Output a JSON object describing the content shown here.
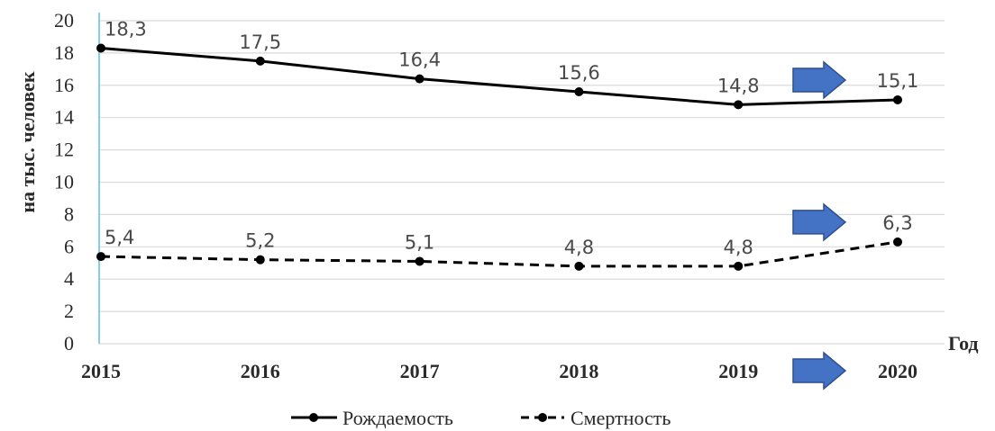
{
  "chart_data": {
    "type": "line",
    "title": "",
    "xlabel": "Год",
    "ylabel": "на тыс. человек",
    "categories": [
      "2015",
      "2016",
      "2017",
      "2018",
      "2019",
      "2020"
    ],
    "ylim": [
      0,
      20
    ],
    "yticks": [
      "0",
      "2",
      "4",
      "6",
      "8",
      "10",
      "12",
      "14",
      "16",
      "18",
      "20"
    ],
    "grid": true,
    "legend_position": "bottom",
    "series": [
      {
        "name": "Рождаемость",
        "values": [
          18.3,
          17.5,
          16.4,
          15.6,
          14.8,
          15.1
        ],
        "labels": [
          "18,3",
          "17,5",
          "16,4",
          "15,6",
          "14,8",
          "15,1"
        ],
        "style": "solid",
        "color": "#000000"
      },
      {
        "name": "Смертность",
        "values": [
          5.4,
          5.2,
          5.1,
          4.8,
          4.8,
          6.3
        ],
        "labels": [
          "5,4",
          "5,2",
          "5,1",
          "4,8",
          "4,8",
          "6,3"
        ],
        "style": "dashed",
        "color": "#000000"
      }
    ],
    "annotations": {
      "arrow_color": "#4472c4",
      "arrow_targets": [
        "series-0-2020",
        "series-1-2020",
        "x-2020"
      ]
    },
    "colors": {
      "gridline": "#d9d9d9",
      "y_axis_line": "#5bc0de"
    }
  }
}
